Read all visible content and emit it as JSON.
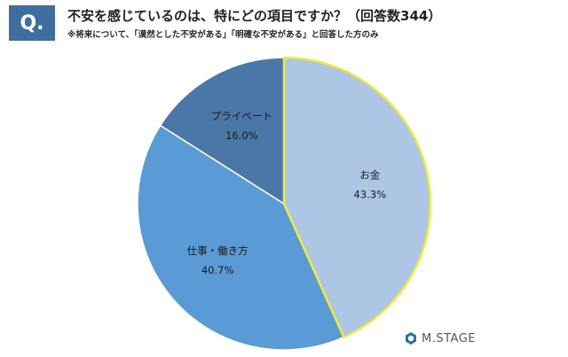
{
  "header": {
    "badge": "Q.",
    "question": "不安を感じているのは、特にどの項目ですか？（回答数344）",
    "note": "※将来について、「漠然とした不安がある」「明確な不安がある」と回答した方のみ"
  },
  "brand": {
    "name": "M.STAGE"
  },
  "chart_data": {
    "type": "pie",
    "title": "不安を感じているのは、特にどの項目ですか？（回答数344）",
    "slices": [
      {
        "label": "お金",
        "value": 43.3,
        "value_label": "43.3%",
        "color": "#adc6e4",
        "highlighted": true
      },
      {
        "label": "仕事・働き方",
        "value": 40.7,
        "value_label": "40.7%",
        "color": "#5b9bd5",
        "highlighted": false
      },
      {
        "label": "プライベート",
        "value": 16.0,
        "value_label": "16.0%",
        "color": "#4a77a8",
        "highlighted": false
      }
    ],
    "highlight_color": "#f2ea3a",
    "start": "12 o'clock, clockwise"
  }
}
